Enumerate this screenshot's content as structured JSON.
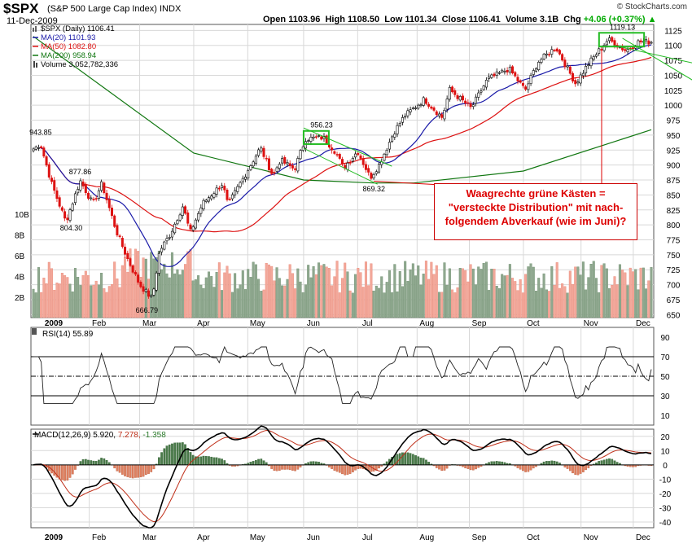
{
  "header": {
    "symbol": "$SPX",
    "description": "(S&P 500 Large Cap Index) INDX",
    "date": "11-Dec-2009",
    "watermark": "© StockCharts.com",
    "quote": {
      "open_label": "Open",
      "open": "1103.96",
      "high_label": "High",
      "high": "1108.50",
      "low_label": "Low",
      "low": "1101.34",
      "close_label": "Close",
      "close": "1106.41",
      "volume_label": "Volume",
      "volume": "3.1B",
      "chg_label": "Chg",
      "chg": "+4.06 (+0.37%)"
    }
  },
  "legend": [
    {
      "text": "$SPX (Daily) 1106.41",
      "color": "#000000"
    },
    {
      "text": "MA(20) 1101.93",
      "color": "#1a1aa8"
    },
    {
      "text": "MA(50) 1082.80",
      "color": "#dd1111"
    },
    {
      "text": "MA(200) 958.94",
      "color": "#117711"
    },
    {
      "text": "Volume 3,052,782,336",
      "color": "#000000"
    }
  ],
  "annotation_text": [
    "Waagrechte grüne Kästen =",
    "\"versteckte Distribution\" mit nach-",
    "folgendem Abverkauf (wie im Juni)?"
  ],
  "chart_data": [
    {
      "type": "line",
      "title": "$SPX (Daily)",
      "x_labels": [
        "2009",
        "Feb",
        "Mar",
        "Apr",
        "May",
        "Jun",
        "Jul",
        "Aug",
        "Sep",
        "Oct",
        "Nov",
        "Dec"
      ],
      "y_ticks": [
        650,
        675,
        700,
        725,
        750,
        775,
        800,
        825,
        850,
        875,
        900,
        925,
        950,
        975,
        1000,
        1025,
        1050,
        1075,
        1100,
        1125
      ],
      "ylim": [
        645,
        1135
      ],
      "volume_ticks": [
        "2B",
        "4B",
        "6B",
        "8B",
        "10B"
      ],
      "price_labels": [
        {
          "text": "943.85",
          "x": "2009-01-06",
          "y": 943.85
        },
        {
          "text": "877.86",
          "x": "2009-01-28",
          "y": 877.86
        },
        {
          "text": "804.30",
          "x": "2009-01-23",
          "y": 804.3
        },
        {
          "text": "666.79",
          "x": "2009-03-06",
          "y": 666.79
        },
        {
          "text": "956.23",
          "x": "2009-06-11",
          "y": 956.23
        },
        {
          "text": "869.32",
          "x": "2009-07-10",
          "y": 869.32
        },
        {
          "text": "1119.13",
          "x": "2009-11-25",
          "y": 1119.13
        }
      ],
      "close_keypoints": [
        [
          "2009-01-02",
          927
        ],
        [
          "2009-01-06",
          935
        ],
        [
          "2009-01-12",
          870
        ],
        [
          "2009-01-20",
          805
        ],
        [
          "2009-01-28",
          874
        ],
        [
          "2009-02-04",
          835
        ],
        [
          "2009-02-09",
          869
        ],
        [
          "2009-02-17",
          790
        ],
        [
          "2009-02-23",
          745
        ],
        [
          "2009-03-02",
          700
        ],
        [
          "2009-03-09",
          676
        ],
        [
          "2009-03-13",
          756
        ],
        [
          "2009-03-19",
          785
        ],
        [
          "2009-03-26",
          832
        ],
        [
          "2009-03-30",
          787
        ],
        [
          "2009-04-06",
          836
        ],
        [
          "2009-04-17",
          869
        ],
        [
          "2009-04-20",
          833
        ],
        [
          "2009-05-08",
          929
        ],
        [
          "2009-05-15",
          882
        ],
        [
          "2009-05-19",
          908
        ],
        [
          "2009-05-27",
          893
        ],
        [
          "2009-06-02",
          944
        ],
        [
          "2009-06-12",
          946
        ],
        [
          "2009-06-19",
          921
        ],
        [
          "2009-06-23",
          895
        ],
        [
          "2009-07-01",
          923
        ],
        [
          "2009-07-08",
          879
        ],
        [
          "2009-07-13",
          901
        ],
        [
          "2009-07-21",
          954
        ],
        [
          "2009-07-27",
          982
        ],
        [
          "2009-08-07",
          1010
        ],
        [
          "2009-08-17",
          979
        ],
        [
          "2009-08-21",
          1026
        ],
        [
          "2009-09-02",
          995
        ],
        [
          "2009-09-11",
          1043
        ],
        [
          "2009-09-23",
          1061
        ],
        [
          "2009-10-02",
          1025
        ],
        [
          "2009-10-09",
          1072
        ],
        [
          "2009-10-19",
          1097
        ],
        [
          "2009-10-30",
          1036
        ],
        [
          "2009-11-06",
          1069
        ],
        [
          "2009-11-17",
          1110
        ],
        [
          "2009-11-27",
          1091
        ],
        [
          "2009-12-04",
          1106
        ],
        [
          "2009-12-11",
          1106
        ]
      ],
      "series": [
        {
          "name": "MA(20)",
          "last": 1101.93,
          "color": "#1a1aa8"
        },
        {
          "name": "MA(50)",
          "last": 1082.8,
          "color": "#dd1111"
        },
        {
          "name": "MA(200)",
          "last": 958.94,
          "color": "#117711",
          "keypoints": [
            [
              "2009-01-02",
              1115
            ],
            [
              "2009-04-01",
              920
            ],
            [
              "2009-06-01",
              875
            ],
            [
              "2009-07-10",
              870
            ],
            [
              "2009-08-01",
              870
            ],
            [
              "2009-10-01",
              890
            ],
            [
              "2009-12-11",
              959
            ]
          ]
        }
      ],
      "green_boxes": [
        {
          "x0": "2009-06-01",
          "x1": "2009-06-15",
          "y0": 935,
          "y1": 957
        },
        {
          "x0": "2009-11-12",
          "x1": "2009-12-07",
          "y0": 1098,
          "y1": 1121
        }
      ]
    },
    {
      "type": "line",
      "title": "RSI(14)",
      "label": "RSI(14) 55.89",
      "y_ticks": [
        10,
        30,
        50,
        70,
        90
      ],
      "ylim": [
        0,
        100
      ],
      "last": 55.89,
      "levels": [
        30,
        50,
        70
      ]
    },
    {
      "type": "line",
      "title": "MACD(12,26,9)",
      "label": {
        "name": "MACD(12,26,9)",
        "macd": "5.920",
        "signal": "7.278",
        "hist": "-1.358"
      },
      "y_ticks": [
        -40,
        -30,
        -20,
        -10,
        0,
        10,
        20
      ],
      "ylim": [
        -44,
        25
      ],
      "x_labels": [
        "2009",
        "Feb",
        "Mar",
        "Apr",
        "May",
        "Jun",
        "Jul",
        "Aug",
        "Sep",
        "Oct",
        "Nov",
        "Dec"
      ],
      "series_names": [
        "MACD",
        "Signal",
        "Histogram"
      ]
    }
  ],
  "colors": {
    "up": "#000000",
    "down": "#dd1111",
    "vol_up": "#8fa88f",
    "vol_down": "#f3a89a",
    "grid": "#d8d8d8",
    "annotation": "#dd0000",
    "box": "#22bb22"
  }
}
